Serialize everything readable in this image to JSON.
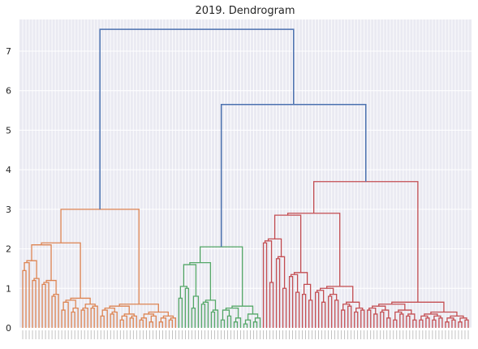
{
  "chart_data": {
    "type": "dendrogram",
    "title": "2019. Dendrogram",
    "xlabel": "",
    "ylabel": "",
    "ylim": [
      0,
      7.8
    ],
    "yticks": [
      "0",
      "1",
      "2",
      "3",
      "4",
      "5",
      "6",
      "7"
    ],
    "grid": true,
    "leaf_labels_legible": false,
    "colors": {
      "above_threshold": "#4C72B0",
      "clusters": [
        "#DD8452",
        "#55A868",
        "#C44E52"
      ],
      "plot_background": "#EAEAF2",
      "grid": "#ffffff"
    },
    "clusters": [
      {
        "color": "#DD8452",
        "leaf_count": 48,
        "merge_heights": [
          3.0,
          1.85,
          2.1,
          1.3,
          1.65,
          1.45,
          1.0,
          1.2,
          1.05,
          0.8,
          1.1,
          0.75,
          0.8,
          0.6,
          0.55,
          0.65,
          0.45,
          0.5,
          0.4,
          0.6,
          0.5,
          0.45,
          0.35,
          0.5,
          0.4,
          0.3,
          0.35,
          0.45,
          0.3,
          0.4,
          0.35,
          0.25,
          0.3,
          0.2,
          0.3,
          0.25,
          0.2,
          0.15,
          0.25,
          0.2,
          0.3,
          0.15,
          0.2,
          0.25,
          0.15,
          0.1,
          0.2
        ]
      },
      {
        "color": "#55A868",
        "leaf_count": 26,
        "merge_heights": [
          2.05,
          1.3,
          1.6,
          0.95,
          0.75,
          1.0,
          0.8,
          0.5,
          0.55,
          0.45,
          0.6,
          0.35,
          0.4,
          0.3,
          0.25,
          0.45,
          0.2,
          0.3,
          0.25,
          0.15,
          0.35,
          0.2,
          0.1,
          0.25,
          0.15
        ]
      },
      {
        "color": "#C44E52",
        "leaf_count": 64,
        "merge_heights": [
          3.7,
          1.85,
          2.85,
          1.3,
          1.35,
          2.15,
          1.15,
          1.45,
          1.75,
          1.0,
          0.95,
          0.8,
          1.3,
          0.9,
          1.1,
          0.85,
          0.7,
          0.65,
          0.6,
          0.75,
          0.9,
          0.65,
          0.55,
          0.8,
          0.7,
          0.5,
          0.6,
          0.45,
          0.55,
          0.5,
          0.4,
          0.45,
          0.35,
          0.5,
          0.4,
          0.3,
          0.45,
          0.35,
          0.3,
          0.4,
          0.25,
          0.35,
          0.3,
          0.2,
          0.35,
          0.25,
          0.3,
          0.2,
          0.25,
          0.15,
          0.3,
          0.2,
          0.25,
          0.15,
          0.2,
          0.25,
          0.1,
          0.2,
          0.15,
          0.2,
          0.1,
          0.15,
          0.2
        ]
      }
    ],
    "top_links": [
      {
        "height": 5.65,
        "joins": "green cluster + red cluster"
      },
      {
        "height": 7.55,
        "joins": "orange cluster + (green, red)"
      }
    ]
  }
}
